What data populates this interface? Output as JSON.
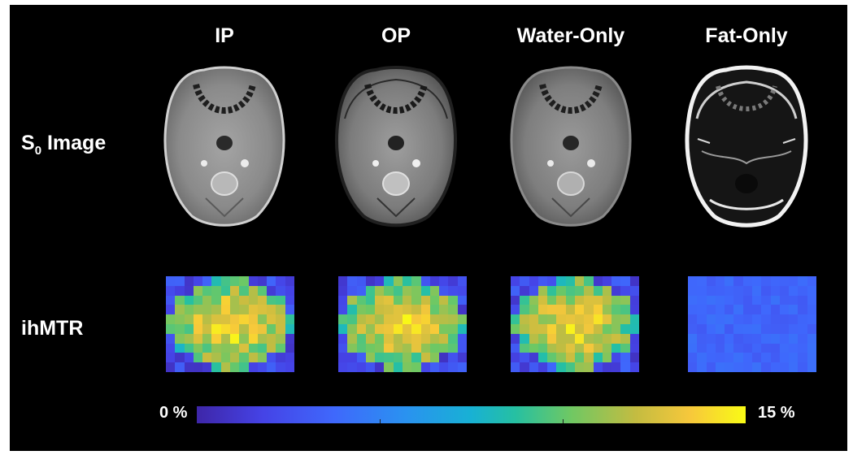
{
  "columns": [
    "IP",
    "OP",
    "Water-Only",
    "Fat-Only"
  ],
  "rows": {
    "s0_label_main": "S",
    "s0_label_sub": "0",
    "s0_label_rest": " Image",
    "ihmtr_label": "ihMTR"
  },
  "colorbar": {
    "min_label": "0 %",
    "max_label": "15 %",
    "min_value": 0,
    "max_value": 15,
    "unit": "%",
    "colormap": "parula"
  },
  "images": [
    {
      "column": "IP",
      "row": "S0 Image",
      "content": "axial neck MRI, in-phase, mid-gray soft tissue"
    },
    {
      "column": "OP",
      "row": "S0 Image",
      "content": "axial neck MRI, opposed-phase, dark boundary lines"
    },
    {
      "column": "Water-Only",
      "row": "S0 Image",
      "content": "axial neck MRI, water-only"
    },
    {
      "column": "Fat-Only",
      "row": "S0 Image",
      "content": "axial neck MRI, fat-only, bright fat dark muscle"
    }
  ],
  "maps": [
    {
      "column": "IP",
      "pattern": "central yellow-green blob on dark blue background"
    },
    {
      "column": "OP",
      "pattern": "central yellow-orange blob on dark blue background"
    },
    {
      "column": "Water-Only",
      "pattern": "central yellow-orange blob on dark blue background"
    },
    {
      "column": "Fat-Only",
      "pattern": "uniform low blue"
    }
  ]
}
